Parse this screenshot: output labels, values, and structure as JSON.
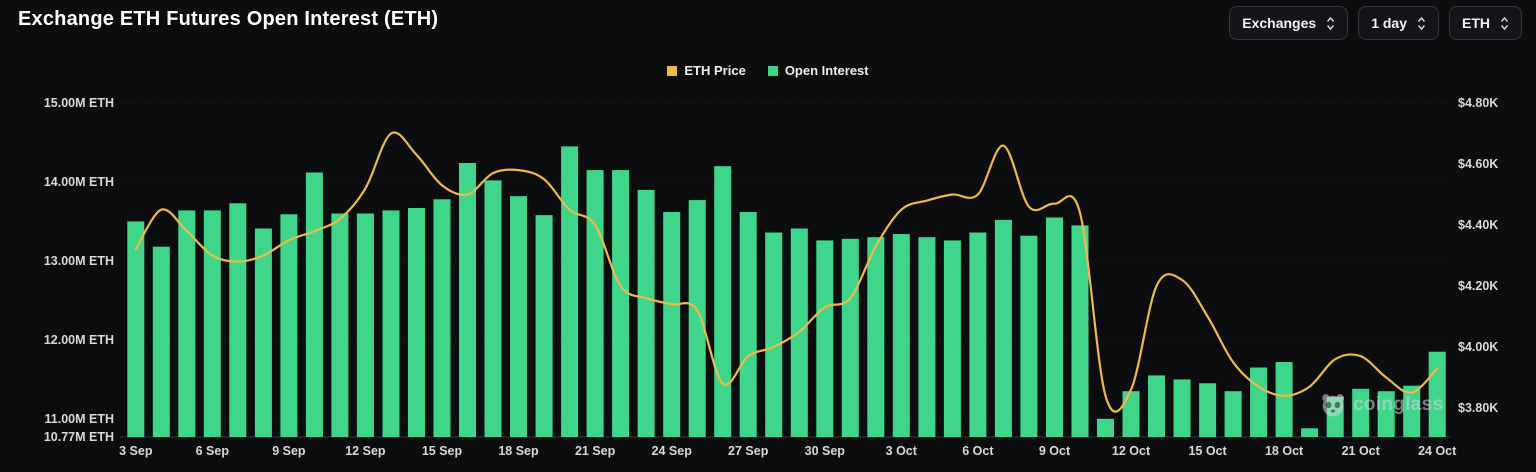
{
  "header": {
    "title": "Exchange ETH Futures Open Interest (ETH)",
    "controls": [
      {
        "label": "Exchanges",
        "name": "exchanges-select"
      },
      {
        "label": "1 day",
        "name": "interval-select"
      },
      {
        "label": "ETH",
        "name": "unit-select"
      }
    ]
  },
  "legend": [
    {
      "label": "ETH Price",
      "color": "#eeba4a"
    },
    {
      "label": "Open Interest",
      "color": "#3fd68c"
    }
  ],
  "watermark": {
    "text": "coinglass"
  },
  "axes": {
    "left": {
      "labels": [
        "15.00M ETH",
        "14.00M ETH",
        "13.00M ETH",
        "12.00M ETH",
        "11.00M ETH",
        "10.77M ETH"
      ],
      "values": [
        15.0,
        14.0,
        13.0,
        12.0,
        11.0,
        10.77
      ]
    },
    "right": {
      "labels": [
        "$4.80K",
        "$4.60K",
        "$4.40K",
        "$4.20K",
        "$4.00K",
        "$3.80K"
      ],
      "values": [
        4.8,
        4.6,
        4.4,
        4.2,
        4.0,
        3.8
      ]
    },
    "x_ticks": [
      "3 Sep",
      "6 Sep",
      "9 Sep",
      "12 Sep",
      "15 Sep",
      "18 Sep",
      "21 Sep",
      "24 Sep",
      "27 Sep",
      "30 Sep",
      "3 Oct",
      "6 Oct",
      "9 Oct",
      "12 Oct",
      "15 Oct",
      "18 Oct",
      "21 Oct",
      "24 Oct"
    ]
  },
  "chart_data": {
    "type": "bar+line",
    "title": "Exchange ETH Futures Open Interest (ETH)",
    "x": [
      "3 Sep",
      "4 Sep",
      "5 Sep",
      "6 Sep",
      "7 Sep",
      "8 Sep",
      "9 Sep",
      "10 Sep",
      "11 Sep",
      "12 Sep",
      "13 Sep",
      "14 Sep",
      "15 Sep",
      "16 Sep",
      "17 Sep",
      "18 Sep",
      "19 Sep",
      "20 Sep",
      "21 Sep",
      "22 Sep",
      "23 Sep",
      "24 Sep",
      "25 Sep",
      "26 Sep",
      "27 Sep",
      "28 Sep",
      "29 Sep",
      "30 Sep",
      "1 Oct",
      "2 Oct",
      "3 Oct",
      "4 Oct",
      "5 Oct",
      "6 Oct",
      "7 Oct",
      "8 Oct",
      "9 Oct",
      "10 Oct",
      "11 Oct",
      "12 Oct",
      "13 Oct",
      "14 Oct",
      "15 Oct",
      "16 Oct",
      "17 Oct",
      "18 Oct",
      "19 Oct",
      "20 Oct",
      "21 Oct",
      "22 Oct",
      "23 Oct",
      "24 Oct"
    ],
    "series": [
      {
        "name": "Open Interest",
        "type": "bar",
        "axis": "left",
        "unit": "M ETH",
        "color": "#3fd68c",
        "values": [
          13.5,
          13.18,
          13.64,
          13.64,
          13.73,
          13.41,
          13.59,
          14.12,
          13.6,
          13.6,
          13.64,
          13.67,
          13.78,
          14.24,
          14.02,
          13.82,
          13.58,
          14.45,
          14.15,
          14.15,
          13.9,
          13.62,
          13.77,
          14.2,
          13.62,
          13.36,
          13.41,
          13.26,
          13.28,
          13.3,
          13.34,
          13.3,
          13.26,
          13.36,
          13.52,
          13.32,
          13.55,
          13.45,
          11.0,
          11.35,
          11.55,
          11.5,
          11.45,
          11.35,
          11.65,
          11.72,
          10.88,
          11.28,
          11.38,
          11.35,
          11.42,
          11.85
        ]
      },
      {
        "name": "ETH Price",
        "type": "line",
        "axis": "right",
        "unit": "$K",
        "color": "#eeba4a",
        "values": [
          4.32,
          4.45,
          4.38,
          4.3,
          4.28,
          4.3,
          4.35,
          4.38,
          4.42,
          4.52,
          4.7,
          4.63,
          4.53,
          4.5,
          4.57,
          4.58,
          4.55,
          4.45,
          4.4,
          4.2,
          4.16,
          4.14,
          4.12,
          3.88,
          3.97,
          4.0,
          4.05,
          4.13,
          4.16,
          4.33,
          4.45,
          4.48,
          4.5,
          4.5,
          4.66,
          4.46,
          4.47,
          4.44,
          3.84,
          3.86,
          4.2,
          4.22,
          4.1,
          3.95,
          3.87,
          3.84,
          3.87,
          3.96,
          3.97,
          3.9,
          3.85,
          3.93
        ]
      }
    ],
    "left_axis_range": [
      10.77,
      15.0
    ],
    "right_axis_range": [
      3.8,
      4.8
    ],
    "grid": "dotted-horizontal",
    "legend_position": "top-center"
  }
}
